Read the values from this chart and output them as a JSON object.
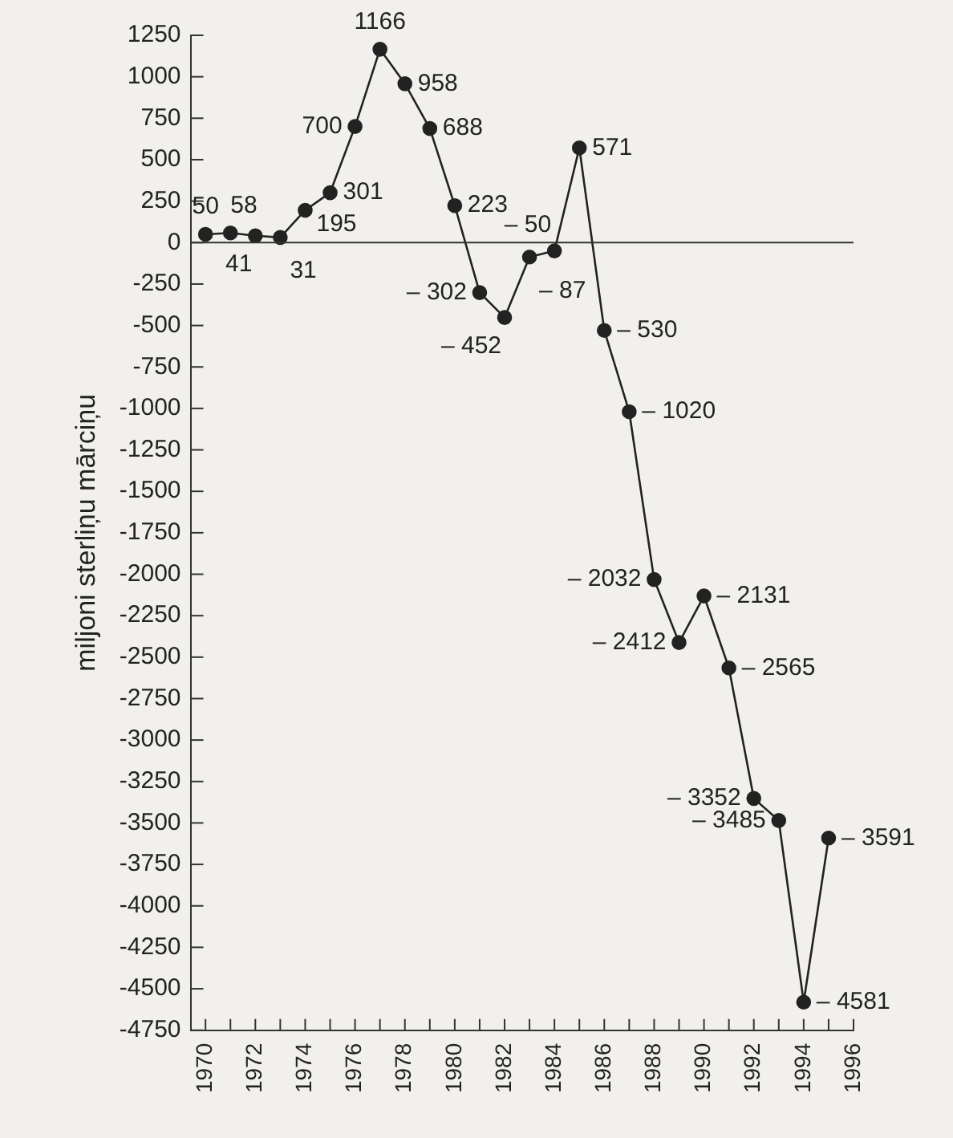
{
  "chart_data": {
    "type": "line",
    "ylabel": "miljoni sterliņu mārciņu",
    "x": [
      1970,
      1971,
      1972,
      1973,
      1974,
      1975,
      1976,
      1977,
      1978,
      1979,
      1980,
      1981,
      1982,
      1983,
      1984,
      1985,
      1986,
      1987,
      1988,
      1989,
      1990,
      1991,
      1992,
      1993,
      1994,
      1995
    ],
    "series": [
      {
        "color": "#222222",
        "values": [
          50,
          58,
          41,
          31,
          195,
          301,
          700,
          1166,
          958,
          688,
          223,
          -302,
          -452,
          -87,
          -50,
          571,
          -530,
          -1020,
          -2032,
          -2412,
          -2131,
          -2565,
          -3352,
          -3485,
          -4581,
          -3591
        ],
        "value_labels": [
          "50",
          "58",
          "41",
          "31",
          "195",
          "301",
          "700",
          "1166",
          "958",
          "688",
          "223",
          "– 302",
          "– 452",
          "– 87",
          "– 50",
          "571",
          "– 530",
          "– 1020",
          "– 2032",
          "– 2412",
          "– 2131",
          "– 2565",
          "– 3352",
          "– 3485",
          "– 4581",
          "– 3591"
        ]
      }
    ],
    "xlim": [
      1969.4,
      1996
    ],
    "xticks": [
      1970,
      {
        "value": 1971,
        "label": null
      },
      1972,
      {
        "value": 1973,
        "label": null
      },
      1974,
      {
        "value": 1975,
        "label": null
      },
      1976,
      {
        "value": 1977,
        "label": null
      },
      1978,
      {
        "value": 1979,
        "label": null
      },
      1980,
      {
        "value": 1981,
        "label": null
      },
      1982,
      {
        "value": 1983,
        "label": null
      },
      1984,
      {
        "value": 1985,
        "label": null
      },
      1986,
      {
        "value": 1987,
        "label": null
      },
      1988,
      {
        "value": 1989,
        "label": null
      },
      1990,
      {
        "value": 1991,
        "label": null
      },
      1992,
      {
        "value": 1993,
        "label": null
      },
      1994,
      {
        "value": 1995,
        "label": null
      },
      1996
    ],
    "ylim": [
      -4750,
      1250
    ],
    "yticks": [
      -4750,
      -4500,
      -4250,
      -4000,
      -3750,
      -3500,
      -3250,
      -3000,
      -2750,
      -2500,
      -2250,
      -2000,
      -1750,
      -1500,
      -1250,
      -1000,
      -750,
      -500,
      -250,
      0,
      250,
      500,
      750,
      1000,
      1250
    ],
    "ref_lines": [
      {
        "axis": "y",
        "value": 0
      }
    ],
    "grid": false,
    "legend": false,
    "marker": "circle",
    "line_style": "solid"
  }
}
